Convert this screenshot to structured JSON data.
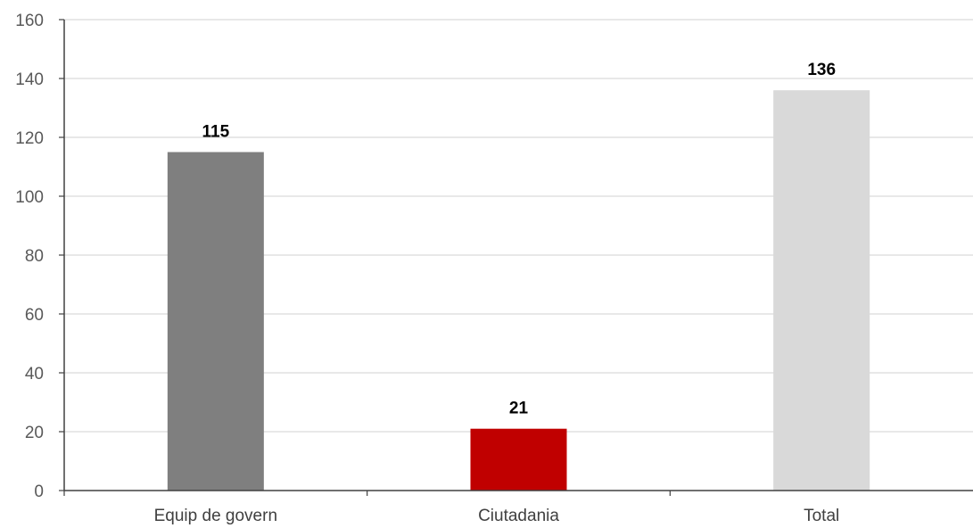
{
  "chart_data": {
    "type": "bar",
    "title": "",
    "xlabel": "",
    "ylabel": "",
    "categories": [
      "Equip de govern",
      "Ciutadania",
      "Total"
    ],
    "values": [
      115,
      21,
      136
    ],
    "data_labels": [
      "115",
      "21",
      "136"
    ],
    "bar_colors": [
      "#7f7f7f",
      "#c00000",
      "#d9d9d9"
    ],
    "ylim": [
      0,
      160
    ],
    "yticks": [
      0,
      20,
      40,
      60,
      80,
      100,
      120,
      140,
      160
    ],
    "grid": true,
    "legend": "none"
  }
}
